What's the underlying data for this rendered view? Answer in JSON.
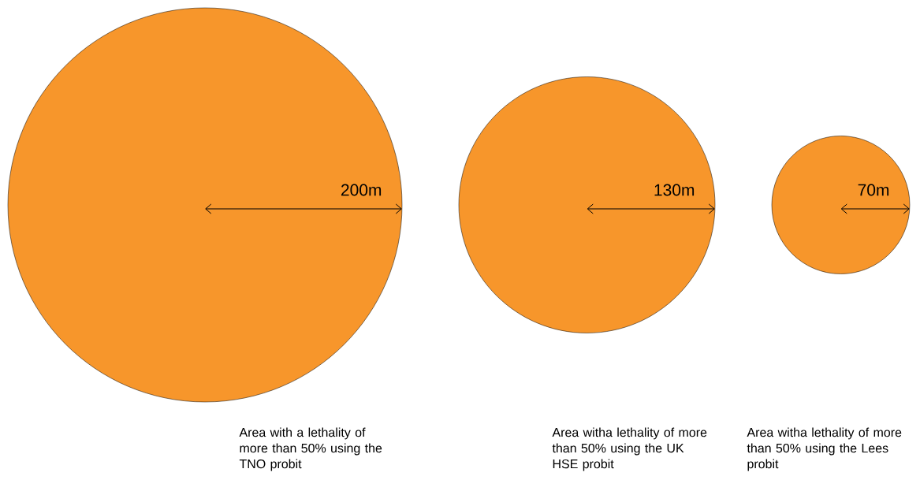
{
  "chart_data": {
    "type": "other",
    "categories": [
      "Area with a lethality of more than 50% using the TNO probit",
      "Area witha lethality of more than 50% using the UK HSE probit",
      "Area witha lethality of more than 50% using the Lees probit"
    ],
    "values": [
      200,
      130,
      70
    ],
    "value_labels": [
      "200m",
      "130m",
      "70m"
    ],
    "color": "#f7962b"
  }
}
